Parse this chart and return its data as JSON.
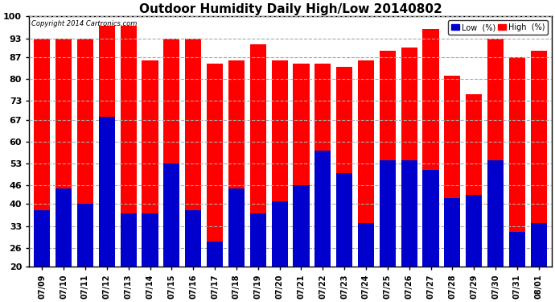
{
  "title": "Outdoor Humidity Daily High/Low 20140802",
  "copyright": "Copyright 2014 Cartronics.com",
  "dates": [
    "07/09",
    "07/10",
    "07/11",
    "07/12",
    "07/13",
    "07/14",
    "07/15",
    "07/16",
    "07/17",
    "07/18",
    "07/19",
    "07/20",
    "07/21",
    "07/22",
    "07/23",
    "07/24",
    "07/25",
    "07/26",
    "07/27",
    "07/28",
    "07/29",
    "07/30",
    "07/31",
    "08/01"
  ],
  "high": [
    93,
    93,
    93,
    97,
    97,
    86,
    93,
    93,
    85,
    86,
    91,
    86,
    85,
    85,
    84,
    86,
    89,
    90,
    96,
    81,
    75,
    93,
    87,
    89
  ],
  "low": [
    38,
    45,
    40,
    68,
    37,
    37,
    53,
    38,
    28,
    45,
    37,
    41,
    46,
    57,
    50,
    34,
    54,
    54,
    51,
    42,
    43,
    54,
    31,
    34
  ],
  "high_color": "#ff0000",
  "low_color": "#0000cc",
  "bg_color": "#ffffff",
  "plot_bg_color": "#ffffff",
  "grid_color": "#aaaaaa",
  "yticks": [
    20,
    26,
    33,
    40,
    46,
    53,
    60,
    67,
    73,
    80,
    87,
    93,
    100
  ],
  "ymin": 20,
  "ymax": 100,
  "bar_width": 0.75,
  "title_fontsize": 11,
  "legend_low_label": "Low  (%)",
  "legend_high_label": "High  (%)"
}
